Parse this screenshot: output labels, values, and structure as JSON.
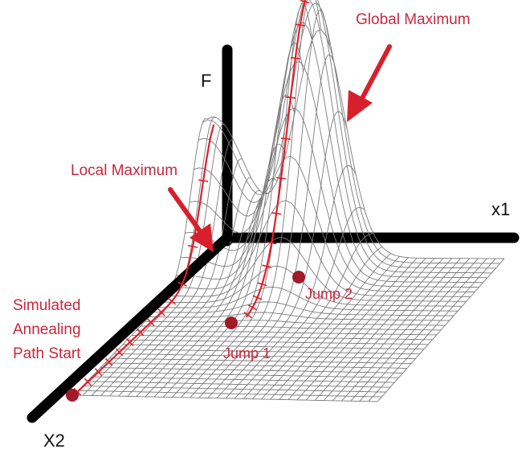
{
  "axes": {
    "f_label": "F",
    "x1_label": "x1",
    "x2_label": "X2"
  },
  "annotations": {
    "global_maximum": "Global Maximum",
    "local_maximum": "Local Maximum",
    "path_start_line1": "Simulated",
    "path_start_line2": "Annealing",
    "path_start_line3": "Path Start",
    "jump1": "Jump 1",
    "jump2": "Jump 2"
  },
  "colors": {
    "annotation": "#c8283c",
    "axis": "#000000",
    "mesh": "#7a7a7a",
    "path": "#e0202a"
  }
}
